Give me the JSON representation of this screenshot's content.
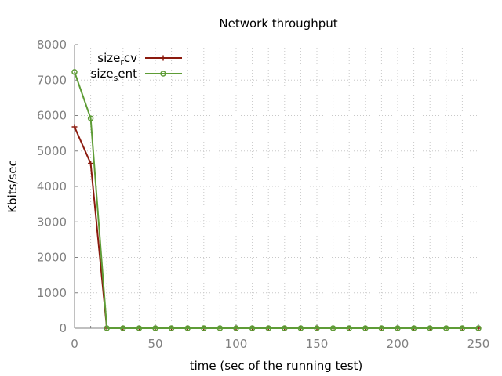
{
  "chart_data": {
    "type": "line",
    "title": "Network throughput",
    "xlabel": "time (sec of the running test)",
    "ylabel": "Kbits/sec",
    "xlim": [
      0,
      250
    ],
    "ylim": [
      0,
      8000
    ],
    "xticks": [
      0,
      50,
      100,
      150,
      200,
      250
    ],
    "yticks": [
      0,
      1000,
      2000,
      3000,
      4000,
      5000,
      6000,
      7000,
      8000
    ],
    "grid": true,
    "legend_position": "top-left",
    "series": [
      {
        "name_base": "size",
        "name_sub": "r",
        "name_rest": "cv",
        "color": "#8b1a0e",
        "marker": "plus",
        "x": [
          0,
          10,
          20,
          30,
          40,
          50,
          60,
          70,
          80,
          90,
          100,
          110,
          120,
          130,
          140,
          150,
          160,
          170,
          180,
          190,
          200,
          210,
          220,
          230,
          240,
          250
        ],
        "y": [
          5680,
          4650,
          0,
          0,
          0,
          0,
          0,
          0,
          0,
          0,
          0,
          0,
          0,
          0,
          0,
          0,
          0,
          0,
          0,
          0,
          0,
          0,
          0,
          0,
          0,
          0
        ]
      },
      {
        "name_base": "size",
        "name_sub": "s",
        "name_rest": "ent",
        "color": "#5e9c36",
        "marker": "circle",
        "x": [
          0,
          10,
          20,
          30,
          40,
          50,
          60,
          70,
          80,
          90,
          100,
          110,
          120,
          130,
          140,
          150,
          160,
          170,
          180,
          190,
          200,
          210,
          220,
          230,
          240,
          250
        ],
        "y": [
          7230,
          5920,
          0,
          0,
          0,
          0,
          0,
          0,
          0,
          0,
          0,
          0,
          0,
          0,
          0,
          0,
          0,
          0,
          0,
          0,
          0,
          0,
          0,
          0,
          0,
          0
        ]
      }
    ]
  }
}
